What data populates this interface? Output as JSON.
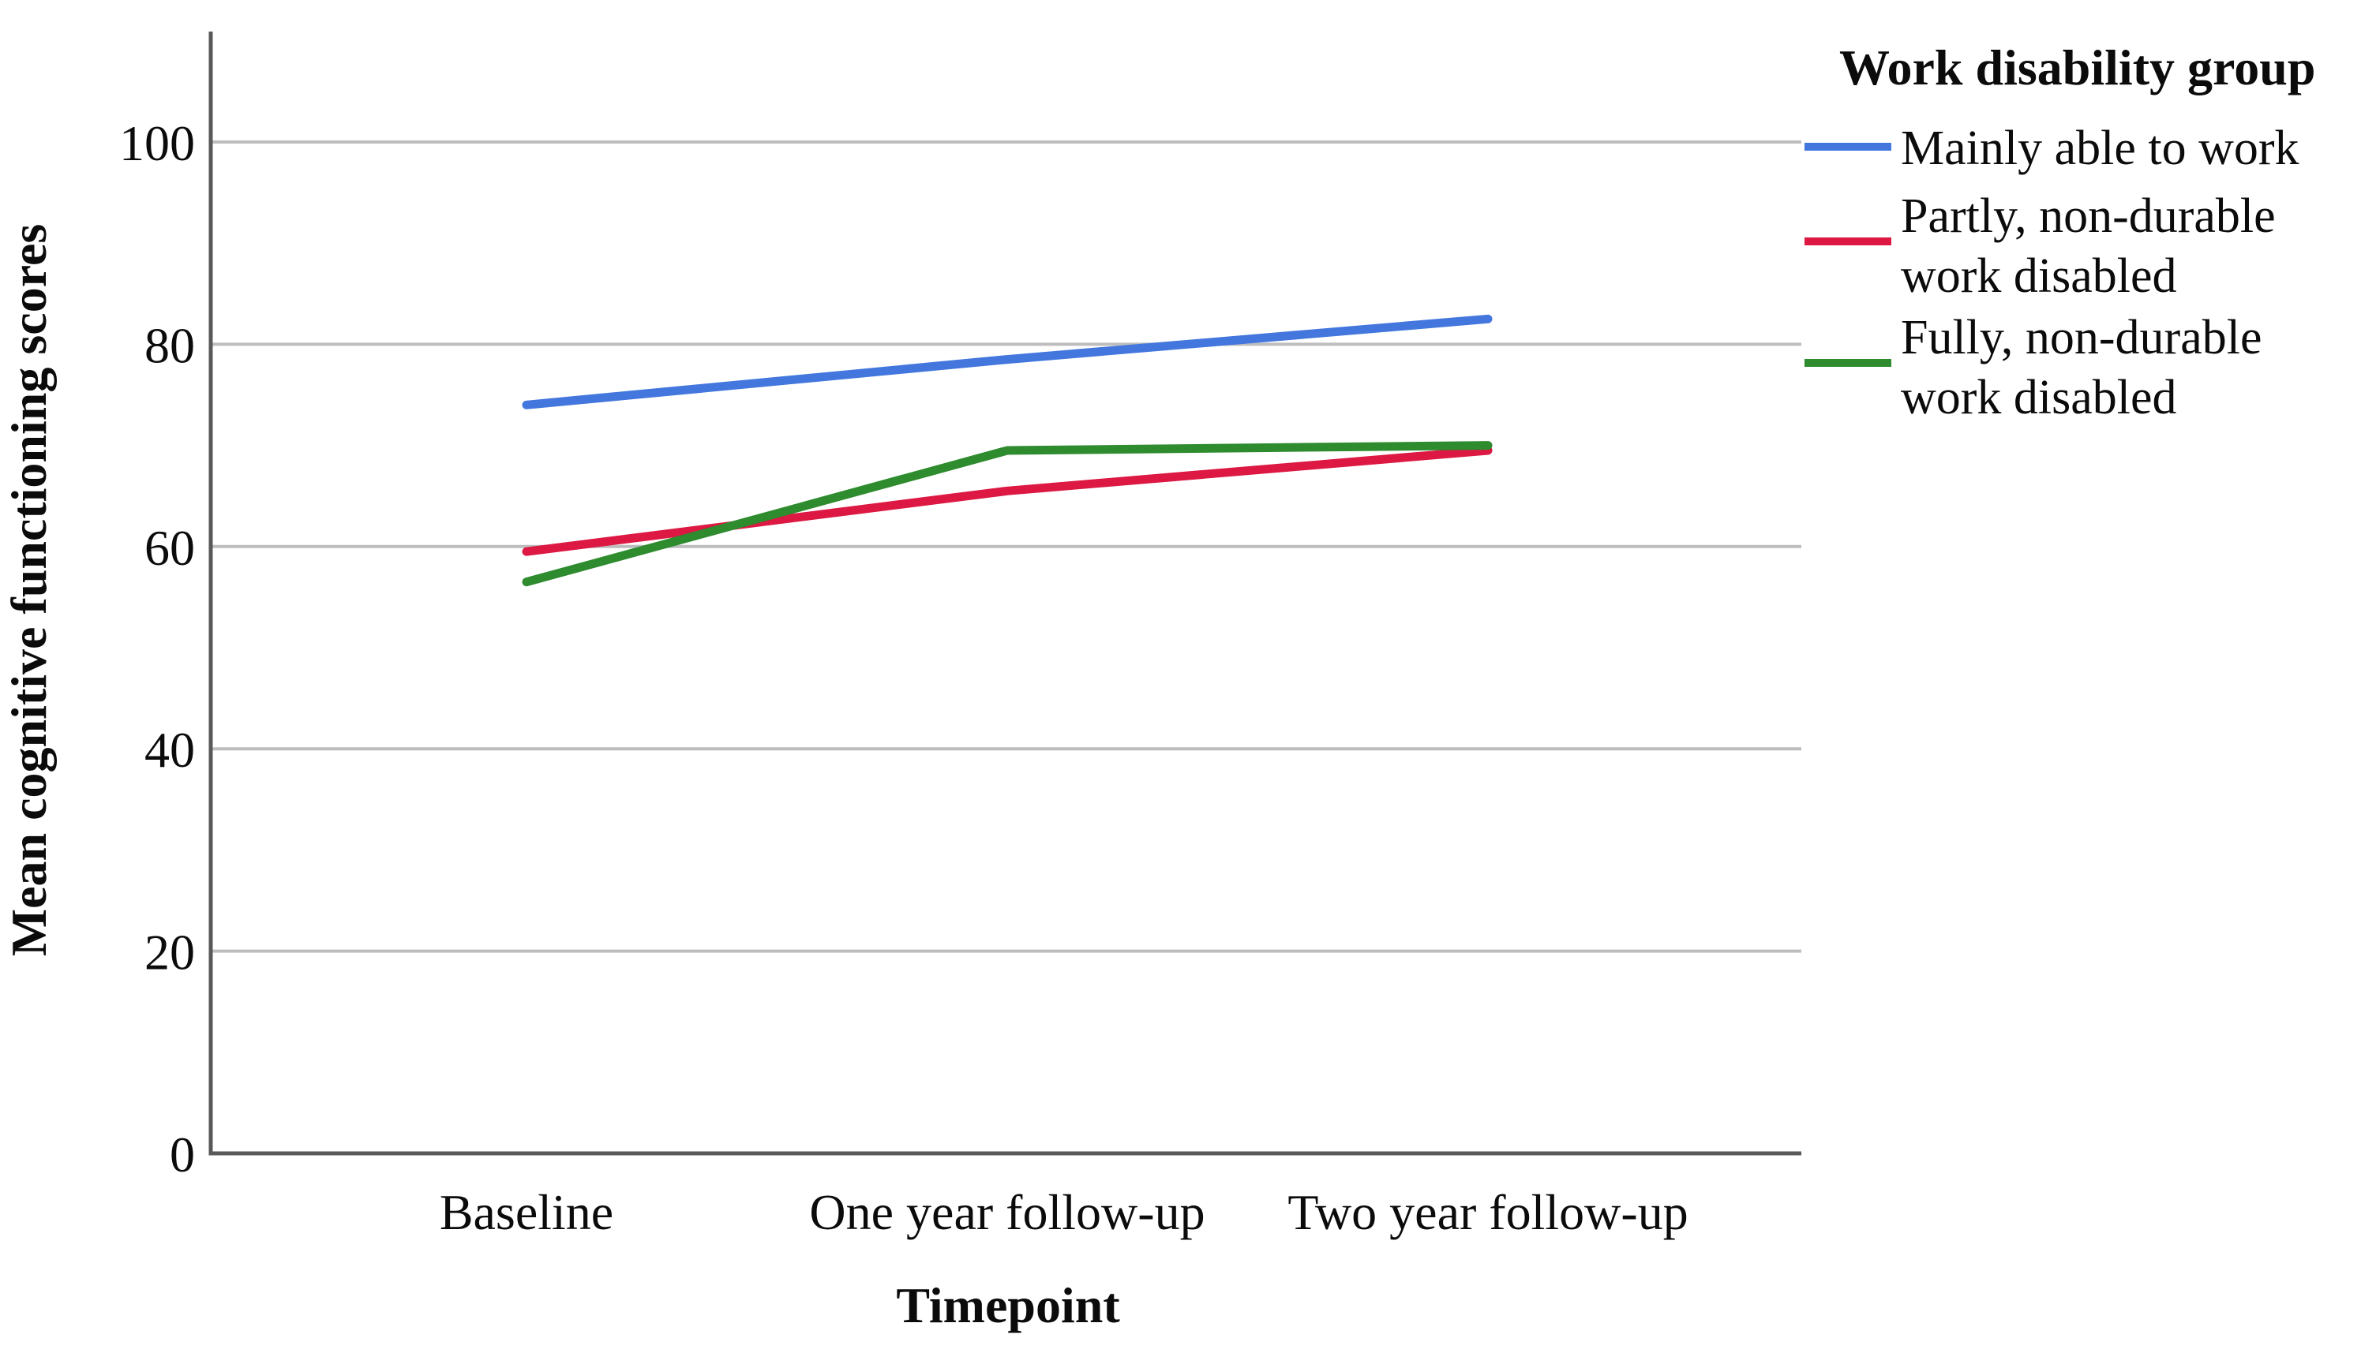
{
  "chart_data": {
    "type": "line",
    "categories": [
      "Baseline",
      "One year follow-up",
      "Two year follow-up"
    ],
    "series": [
      {
        "name": "Mainly able to work",
        "color": "#4377DE",
        "values": [
          74,
          78.5,
          82.5
        ]
      },
      {
        "name": "Partly, non-durable work disabled",
        "color": "#DC1843",
        "values": [
          59.5,
          65.5,
          69.5
        ]
      },
      {
        "name": "Fully, non-durable work disabled",
        "color": "#2E8B2E",
        "values": [
          56.5,
          69.5,
          70
        ]
      }
    ],
    "xlabel": "Timepoint",
    "ylabel": "Mean cognitive functioning scores",
    "ylim": [
      0,
      110
    ],
    "yticks": [
      0,
      20,
      40,
      60,
      80,
      100
    ],
    "grid": true,
    "legend_position": "right",
    "legend": {
      "title": "Work disability group",
      "items": [
        {
          "lines": [
            "Mainly able to work"
          ]
        },
        {
          "lines": [
            "Partly, non-durable",
            "work disabled"
          ]
        },
        {
          "lines": [
            "Fully, non-durable",
            "work disabled"
          ]
        }
      ]
    }
  },
  "colors": {
    "gridline": "#BDBDBD",
    "axis": "#595959",
    "text": "#0B0B0B",
    "background": "#FFFFFF"
  }
}
